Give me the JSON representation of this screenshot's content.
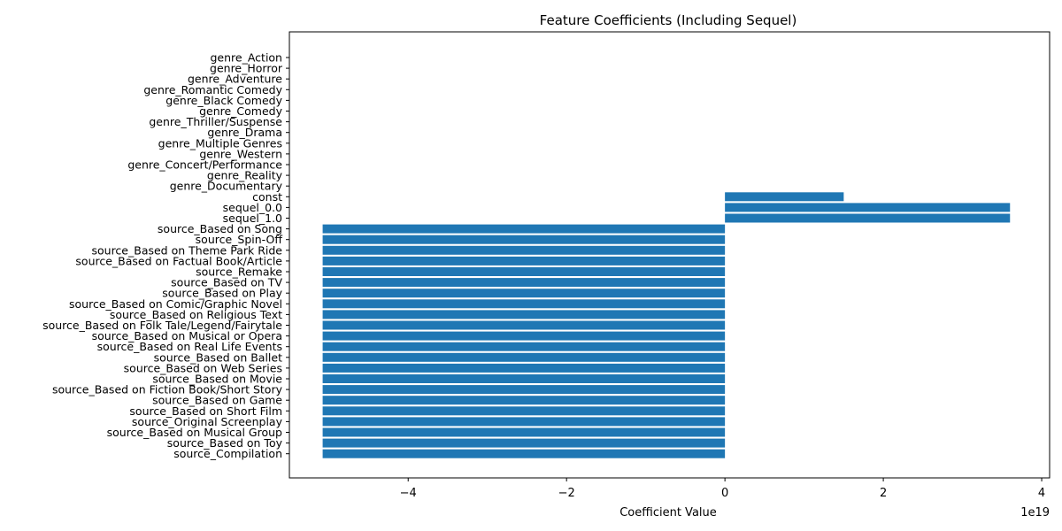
{
  "chart_data": {
    "type": "bar",
    "orientation": "horizontal",
    "title": "Feature Coefficients (Including Sequel)",
    "xlabel": "Coefficient Value",
    "ylabel": "",
    "x_offset_label": "1e19",
    "xlim": [
      -5.5,
      4.1
    ],
    "x_ticks": [
      -4,
      -2,
      0,
      2,
      4
    ],
    "x_tick_labels": [
      "−4",
      "−2",
      "0",
      "2",
      "4"
    ],
    "grid": false,
    "bar_color": "#1f77b4",
    "categories": [
      "genre_Action",
      "genre_Horror",
      "genre_Adventure",
      "genre_Romantic Comedy",
      "genre_Black Comedy",
      "genre_Comedy",
      "genre_Thriller/Suspense",
      "genre_Drama",
      "genre_Multiple Genres",
      "genre_Western",
      "genre_Concert/Performance",
      "genre_Reality",
      "genre_Documentary",
      "const",
      "sequel_0.0",
      "sequel_1.0",
      "source_Based on Song",
      "source_Spin-Off",
      "source_Based on Theme Park Ride",
      "source_Based on Factual Book/Article",
      "source_Remake",
      "source_Based on TV",
      "source_Based on Play",
      "source_Based on Comic/Graphic Novel",
      "source_Based on Religious Text",
      "source_Based on Folk Tale/Legend/Fairytale",
      "source_Based on Musical or Opera",
      "source_Based on Real Life Events",
      "source_Based on Ballet",
      "source_Based on Web Series",
      "source_Based on Movie",
      "source_Based on Fiction Book/Short Story",
      "source_Based on Game",
      "source_Based on Short Film",
      "source_Original Screenplay",
      "source_Based on Musical Group",
      "source_Based on Toy",
      "source_Compilation"
    ],
    "values": [
      0,
      0,
      0,
      0,
      0,
      0,
      0,
      0,
      0,
      0,
      0,
      0,
      0,
      1.5,
      3.6,
      3.6,
      -5.08,
      -5.08,
      -5.08,
      -5.08,
      -5.08,
      -5.08,
      -5.08,
      -5.08,
      -5.08,
      -5.08,
      -5.08,
      -5.08,
      -5.08,
      -5.08,
      -5.08,
      -5.08,
      -5.08,
      -5.08,
      -5.08,
      -5.08,
      -5.08,
      -5.08
    ]
  }
}
